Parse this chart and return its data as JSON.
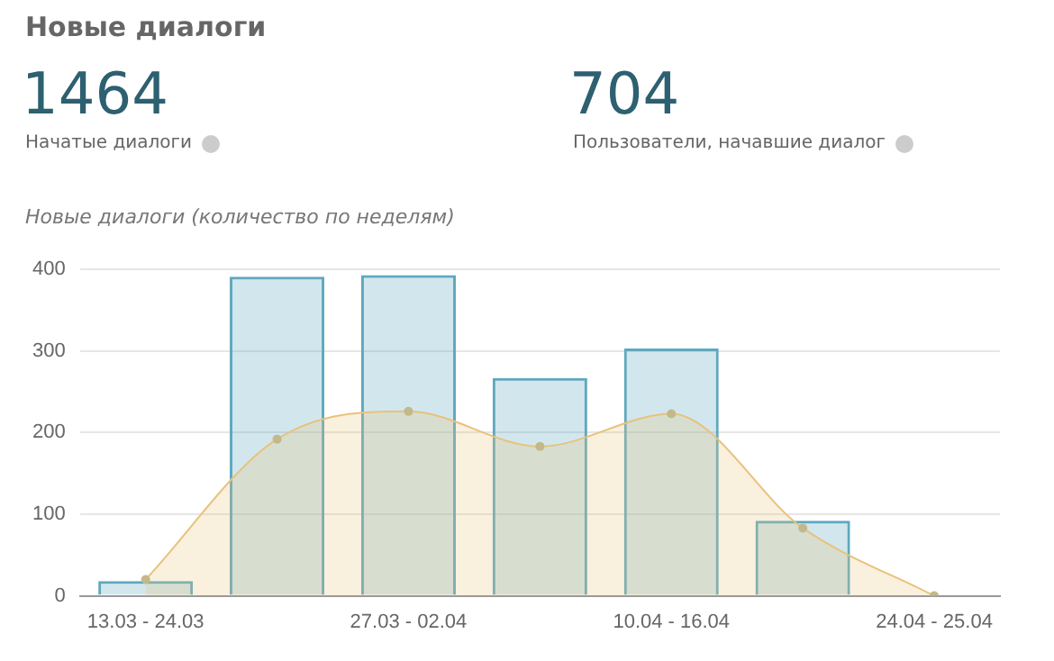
{
  "chart_data": {
    "type": "bar",
    "title": "Новые диалоги",
    "subtitle": "Новые диалоги (количество по неделям)",
    "annotations": [
      "1464",
      "Начатые диалоги",
      "704",
      "Пользователи, начавшие диалог"
    ],
    "categories": [
      "13.03 - 24.03",
      null,
      "27.03 - 02.04",
      null,
      "10.04 - 16.04",
      null,
      "24.04 - 25.04"
    ],
    "series": [
      {
        "type": "area",
        "color": "#e8c27c",
        "values": [
          20,
          192,
          226,
          183,
          223,
          83,
          0
        ]
      },
      {
        "color": "#5fa8bf",
        "values": [
          18,
          391,
          393,
          267,
          303,
          92,
          null
        ]
      }
    ],
    "ylim": [
      0,
      400
    ],
    "yticks": [
      0,
      100,
      200,
      300,
      400
    ],
    "grid": "y",
    "legend": false,
    "marker": "circle"
  }
}
